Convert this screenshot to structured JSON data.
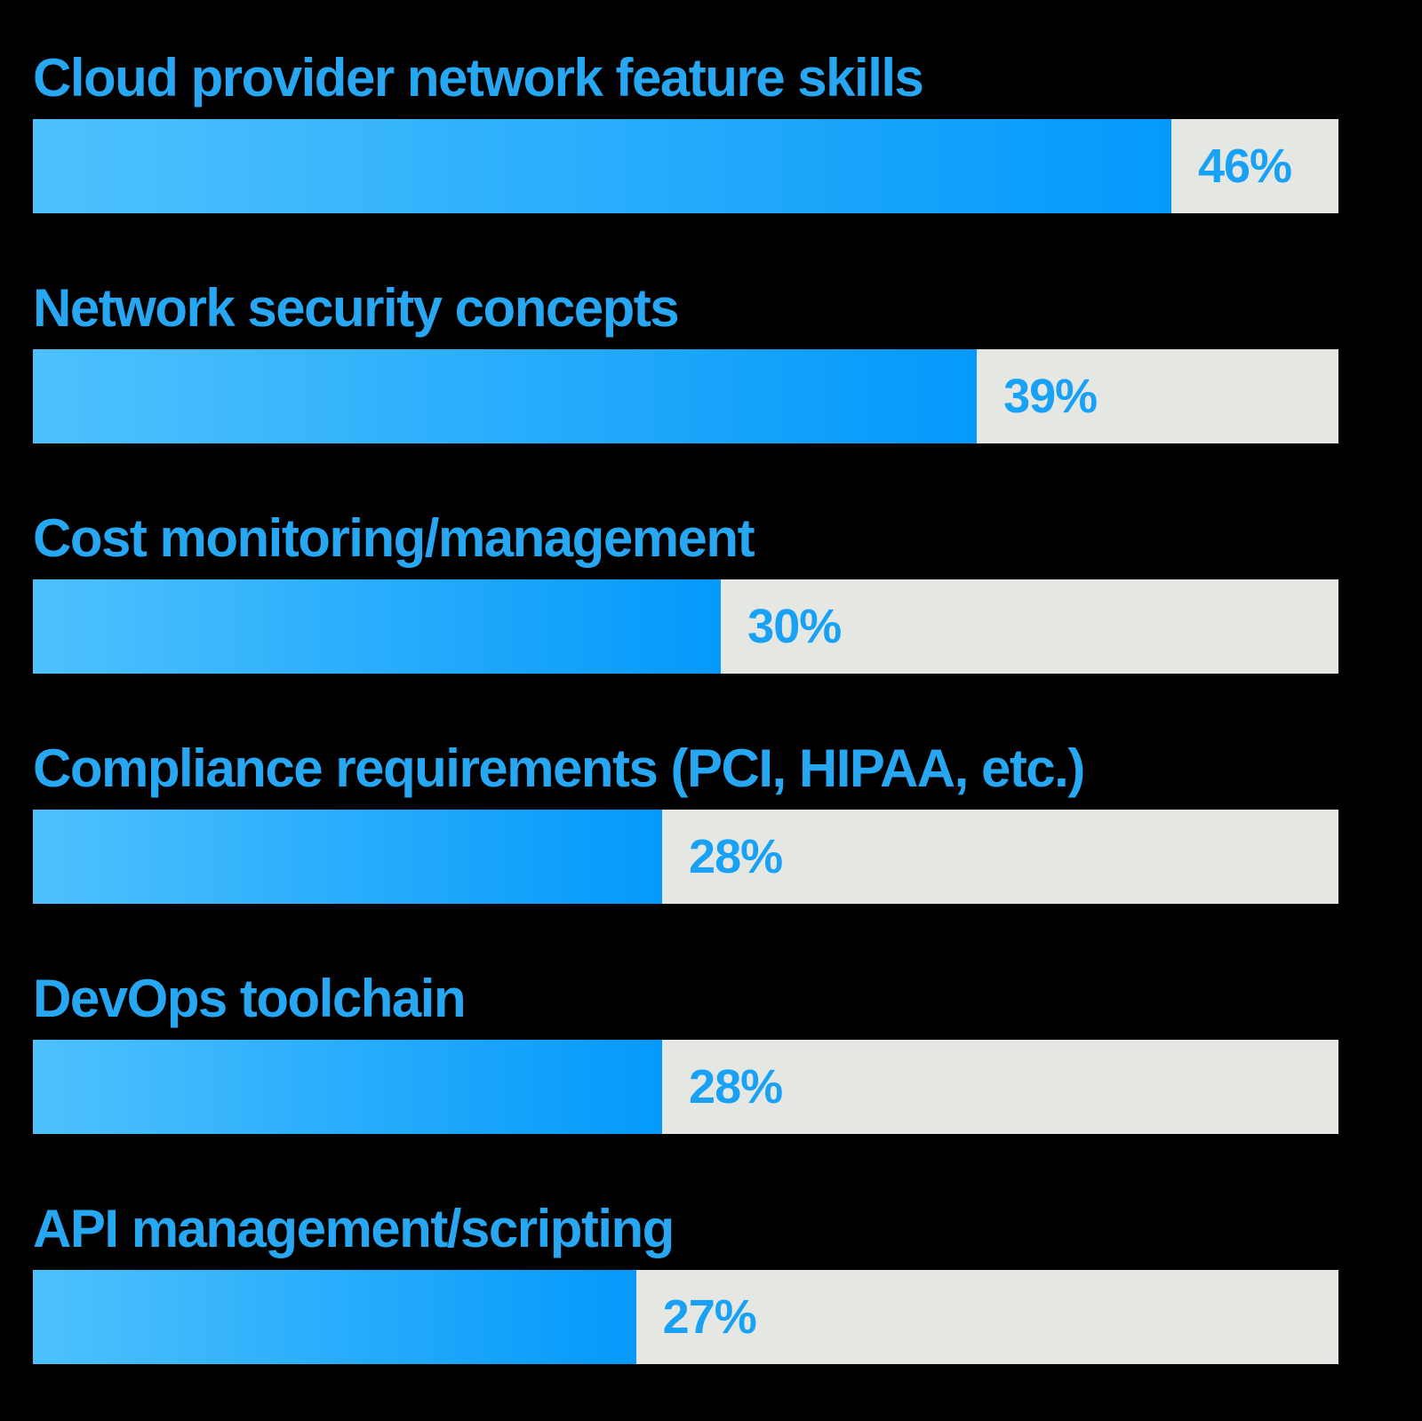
{
  "chart_data": {
    "type": "bar",
    "orientation": "horizontal",
    "title": "",
    "xlabel": "",
    "ylabel": "",
    "grid": false,
    "legend": false,
    "categories": [
      "Cloud provider network feature skills",
      "Network security concepts",
      "Cost monitoring/management",
      "Compliance requirements (PCI, HIPAA, etc.)",
      "DevOps toolchain",
      "API management/scripting"
    ],
    "values": [
      46,
      39,
      30,
      28,
      28,
      27
    ],
    "value_labels": [
      "46%",
      "39%",
      "30%",
      "28%",
      "28%",
      "27%"
    ],
    "bar_display_widths_pct_of_track": [
      87.2,
      72.3,
      52.7,
      48.2,
      48.2,
      46.2
    ]
  },
  "style": {
    "background": "#000000",
    "track_color": "#e5e8e2",
    "bar_gradient_start": "#4ec1fc",
    "bar_gradient_end": "#0499fb",
    "label_color": "#27a6f1",
    "value_color": "#18a1f5"
  },
  "bars": [
    {
      "label": "Cloud provider network feature skills",
      "value": 46,
      "value_label": "46%",
      "width_pct": 87.2
    },
    {
      "label": "Network security concepts",
      "value": 39,
      "value_label": "39%",
      "width_pct": 72.3
    },
    {
      "label": "Cost monitoring/management",
      "value": 30,
      "value_label": "30%",
      "width_pct": 52.7
    },
    {
      "label": "Compliance requirements (PCI, HIPAA, etc.)",
      "value": 28,
      "value_label": "28%",
      "width_pct": 48.2
    },
    {
      "label": "DevOps toolchain",
      "value": 28,
      "value_label": "28%",
      "width_pct": 48.2
    },
    {
      "label": "API management/scripting",
      "value": 27,
      "value_label": "27%",
      "width_pct": 46.2
    }
  ]
}
